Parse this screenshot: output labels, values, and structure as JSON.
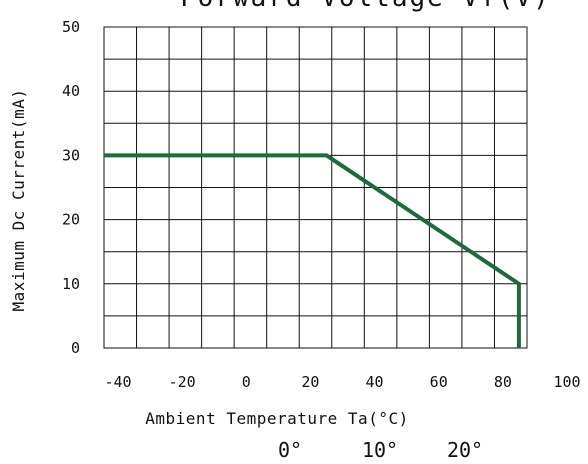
{
  "chart_data": {
    "type": "line",
    "title_partial": "Forward Voltage Vf(V)",
    "xlabel": "Ambient Temperature Ta(°C)",
    "ylabel": "Maximum Dc Current(mA)",
    "xlim": [
      -45,
      100
    ],
    "ylim": [
      0,
      50
    ],
    "x_ticks": [
      "-40",
      "-20",
      "0",
      "20",
      "40",
      "60",
      "80",
      "100"
    ],
    "x_tick_values": [
      -40,
      -20,
      0,
      20,
      40,
      60,
      80,
      100
    ],
    "y_ticks": [
      "0",
      "10",
      "20",
      "30",
      "40",
      "50"
    ],
    "y_tick_values": [
      0,
      10,
      20,
      30,
      40,
      50
    ],
    "grid": true,
    "series": [
      {
        "color": "#1e6b3a",
        "x": [
          -45,
          20,
          25,
          85,
          85
        ],
        "y": [
          30,
          30,
          30,
          10,
          0
        ]
      }
    ],
    "bottom_labels": [
      "0°",
      "10°",
      "20°"
    ]
  }
}
